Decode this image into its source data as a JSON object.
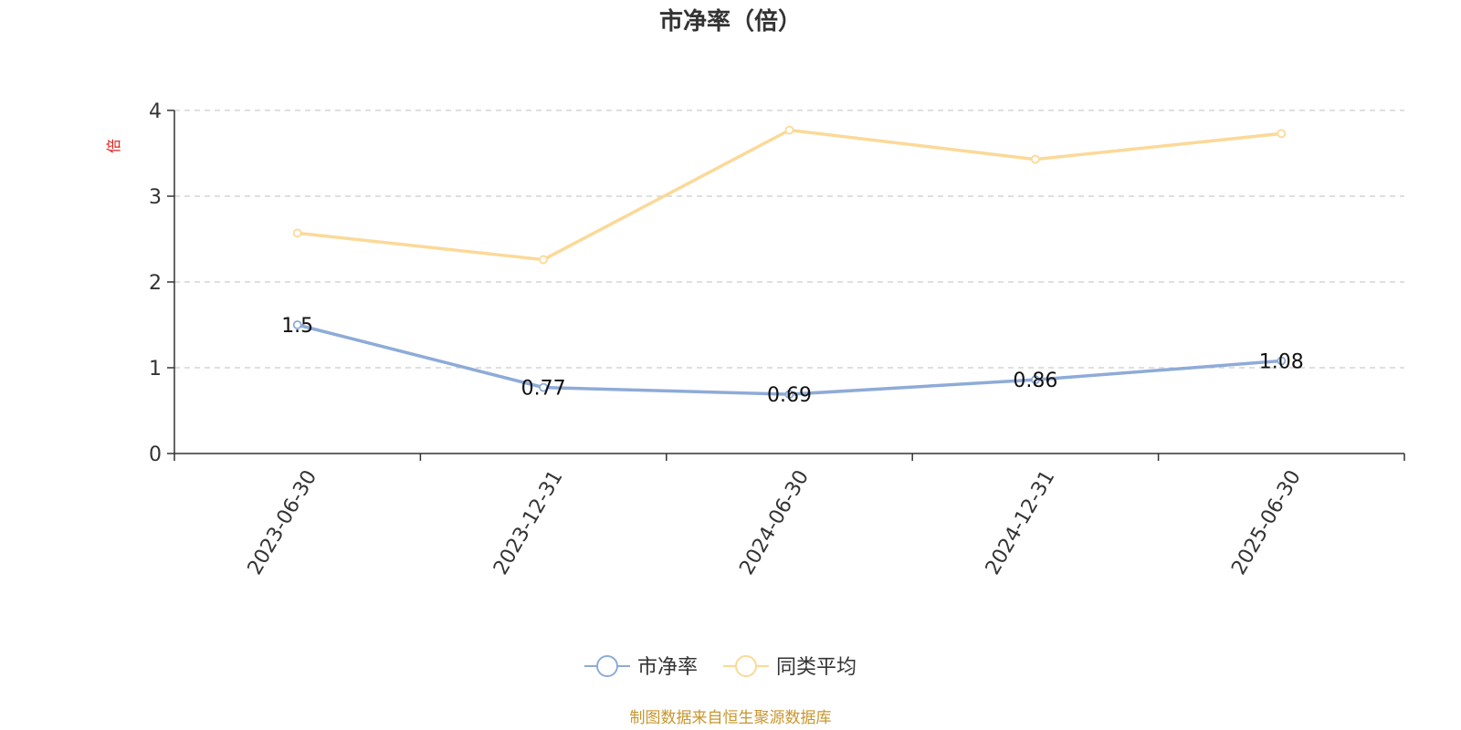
{
  "chart_data": {
    "type": "line",
    "title": "市净率（倍）",
    "ylabel": "倍",
    "ylim": [
      0,
      4
    ],
    "yticks": [
      "0",
      "1",
      "2",
      "3",
      "4"
    ],
    "grid": true,
    "legend_position": "bottom",
    "categories": [
      "2023-06-30",
      "2023-12-31",
      "2024-06-30",
      "2024-12-31",
      "2025-06-30"
    ],
    "series": [
      {
        "name": "市净率",
        "values": [
          1.5,
          0.77,
          0.69,
          0.86,
          1.08
        ],
        "labels": [
          "1.5",
          "0.77",
          "0.69",
          "0.86",
          "1.08"
        ],
        "color": "#8eabd8"
      },
      {
        "name": "同类平均",
        "values": [
          2.57,
          2.26,
          3.77,
          3.43,
          3.73
        ],
        "color": "#fbd998"
      }
    ]
  },
  "footer": {
    "source": "制图数据来自恒生聚源数据库"
  },
  "colors": {
    "ylabel": "#e0201c",
    "source": "#c8962e",
    "axis": "#333333",
    "grid": "#cccccc"
  }
}
